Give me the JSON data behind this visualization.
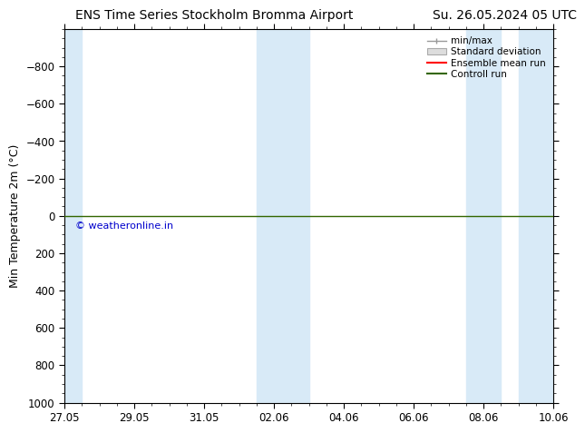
{
  "title_left": "ENS Time Series Stockholm Bromma Airport",
  "title_right": "Su. 26.05.2024 05 UTC",
  "ylabel": "Min Temperature 2m (°C)",
  "ylim_bottom": 1000,
  "ylim_top": -1000,
  "yticks": [
    -800,
    -600,
    -400,
    -200,
    0,
    200,
    400,
    600,
    800,
    1000
  ],
  "x_dates": [
    "27.05",
    "29.05",
    "31.05",
    "02.06",
    "04.06",
    "06.06",
    "08.06",
    "10.06"
  ],
  "x_num": [
    0,
    2,
    4,
    6,
    8,
    10,
    12,
    14
  ],
  "xlim": [
    0,
    14
  ],
  "band_color": "#d8eaf7",
  "background_color": "#ffffff",
  "green_line_color": "#336600",
  "copyright_text": "© weatheronline.in",
  "copyright_color": "#0000cc",
  "legend_labels": [
    "min/max",
    "Standard deviation",
    "Ensemble mean run",
    "Controll run"
  ],
  "legend_colors_line": [
    "#999999",
    "#cccccc",
    "#ff0000",
    "#336600"
  ],
  "title_fontsize": 10,
  "tick_fontsize": 8.5,
  "ylabel_fontsize": 9,
  "blue_bands": [
    [
      0,
      0.5
    ],
    [
      5.5,
      7.0
    ],
    [
      11.5,
      12.5
    ],
    [
      13.0,
      14.0
    ]
  ]
}
